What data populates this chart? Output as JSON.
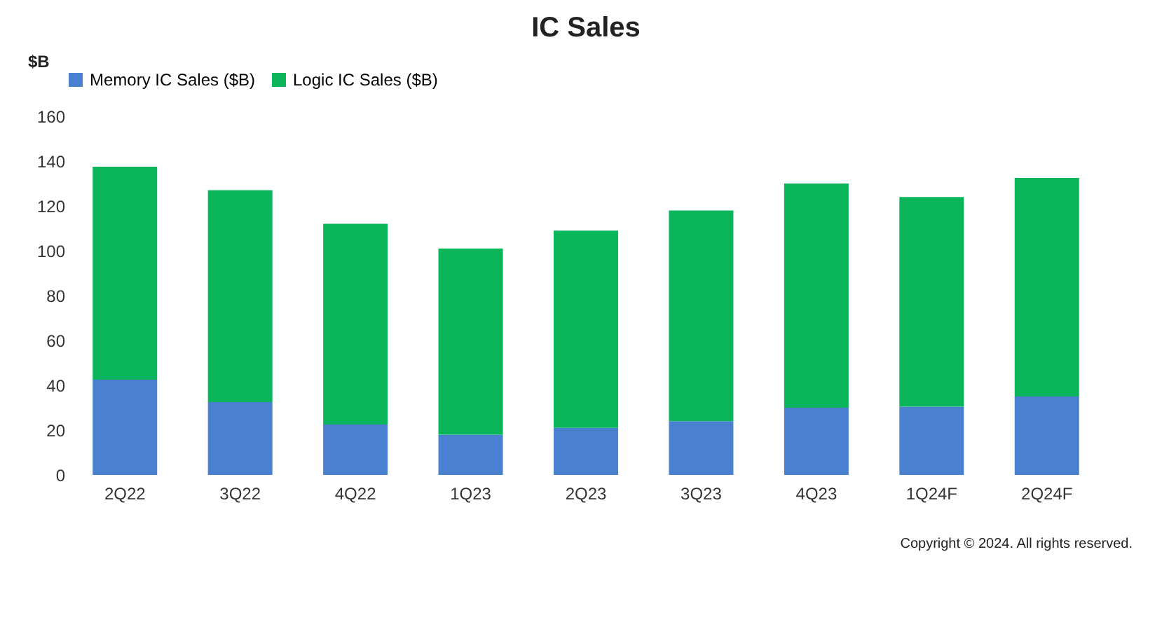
{
  "chart_data": {
    "type": "bar",
    "title": "IC Sales",
    "ylabel": "$B",
    "stacked": true,
    "categories": [
      "2Q22",
      "3Q22",
      "4Q22",
      "1Q23",
      "2Q23",
      "3Q23",
      "4Q23",
      "1Q24F",
      "2Q24F"
    ],
    "series": [
      {
        "name": "Memory IC Sales ($B)",
        "color": "#4a80d0",
        "values": [
          42.5,
          32.5,
          22.5,
          18,
          21,
          24,
          30,
          30.5,
          35
        ]
      },
      {
        "name": "Logic IC Sales ($B)",
        "color": "#0bb55a",
        "values": [
          95,
          94.5,
          89.5,
          83,
          88,
          94,
          100,
          93.5,
          97.5
        ]
      }
    ],
    "ylim": [
      0,
      160
    ],
    "yticks": [
      0,
      20,
      40,
      60,
      80,
      100,
      120,
      140,
      160
    ],
    "grid": false,
    "legend": "top",
    "annotations": [
      "Copyright © 2024. All rights reserved."
    ]
  }
}
